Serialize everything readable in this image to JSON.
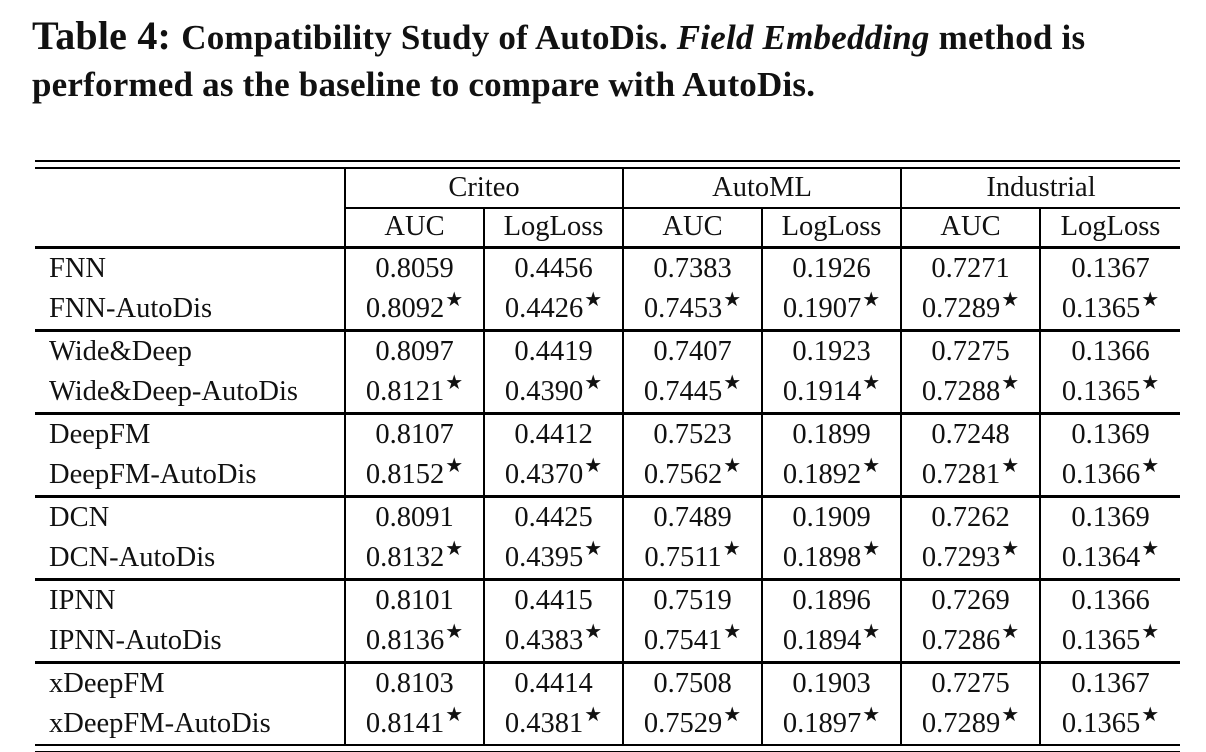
{
  "caption": {
    "segments": [
      {
        "text": "Table 4: ",
        "style": "label"
      },
      {
        "text": "Compatibility Study of AutoDis. ",
        "style": "bold"
      },
      {
        "text": "Field Embedding",
        "style": "bold-italic"
      },
      {
        "text": " method is performed as the baseline to compare with AutoDis.",
        "style": "bold"
      }
    ]
  },
  "table": {
    "row_header": "",
    "groups": [
      "Criteo",
      "AutoML",
      "Industrial"
    ],
    "metrics": [
      "AUC",
      "LogLoss"
    ],
    "star_symbol": "★",
    "rows": [
      {
        "label": "FNN",
        "group_start": true,
        "starred": false,
        "values": [
          "0.8059",
          "0.4456",
          "0.7383",
          "0.1926",
          "0.7271",
          "0.1367"
        ]
      },
      {
        "label": "FNN-AutoDis",
        "group_start": false,
        "starred": true,
        "values": [
          "0.8092",
          "0.4426",
          "0.7453",
          "0.1907",
          "0.7289",
          "0.1365"
        ]
      },
      {
        "label": "Wide&Deep",
        "group_start": true,
        "starred": false,
        "values": [
          "0.8097",
          "0.4419",
          "0.7407",
          "0.1923",
          "0.7275",
          "0.1366"
        ]
      },
      {
        "label": "Wide&Deep-AutoDis",
        "group_start": false,
        "starred": true,
        "values": [
          "0.8121",
          "0.4390",
          "0.7445",
          "0.1914",
          "0.7288",
          "0.1365"
        ]
      },
      {
        "label": "DeepFM",
        "group_start": true,
        "starred": false,
        "values": [
          "0.8107",
          "0.4412",
          "0.7523",
          "0.1899",
          "0.7248",
          "0.1369"
        ]
      },
      {
        "label": "DeepFM-AutoDis",
        "group_start": false,
        "starred": true,
        "values": [
          "0.8152",
          "0.4370",
          "0.7562",
          "0.1892",
          "0.7281",
          "0.1366"
        ]
      },
      {
        "label": "DCN",
        "group_start": true,
        "starred": false,
        "values": [
          "0.8091",
          "0.4425",
          "0.7489",
          "0.1909",
          "0.7262",
          "0.1369"
        ]
      },
      {
        "label": "DCN-AutoDis",
        "group_start": false,
        "starred": true,
        "values": [
          "0.8132",
          "0.4395",
          "0.7511",
          "0.1898",
          "0.7293",
          "0.1364"
        ]
      },
      {
        "label": "IPNN",
        "group_start": true,
        "starred": false,
        "values": [
          "0.8101",
          "0.4415",
          "0.7519",
          "0.1896",
          "0.7269",
          "0.1366"
        ]
      },
      {
        "label": "IPNN-AutoDis",
        "group_start": false,
        "starred": true,
        "values": [
          "0.8136",
          "0.4383",
          "0.7541",
          "0.1894",
          "0.7286",
          "0.1365"
        ]
      },
      {
        "label": "xDeepFM",
        "group_start": true,
        "starred": false,
        "values": [
          "0.8103",
          "0.4414",
          "0.7508",
          "0.1903",
          "0.7275",
          "0.1367"
        ]
      },
      {
        "label": "xDeepFM-AutoDis",
        "group_start": false,
        "starred": true,
        "values": [
          "0.8141",
          "0.4381",
          "0.7529",
          "0.1897",
          "0.7289",
          "0.1365"
        ]
      }
    ]
  }
}
